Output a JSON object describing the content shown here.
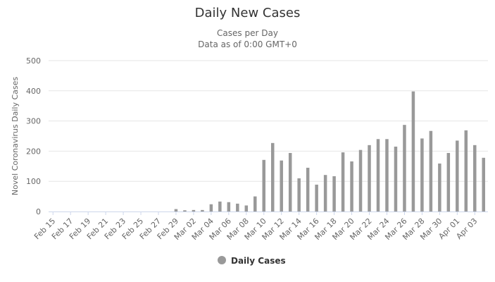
{
  "chart_data": {
    "type": "bar",
    "title": "Daily New Cases",
    "subtitle_lines": [
      "Cases per Day",
      "Data as of 0:00 GMT+0"
    ],
    "ylabel": "Novel Coronavirus Daily Cases",
    "xlabel": "",
    "ylim": [
      0,
      500
    ],
    "yticks": [
      0,
      100,
      200,
      300,
      400,
      500
    ],
    "grid": true,
    "legend_position": "bottom-center",
    "categories": [
      "Feb 15",
      "Feb 16",
      "Feb 17",
      "Feb 18",
      "Feb 19",
      "Feb 20",
      "Feb 21",
      "Feb 22",
      "Feb 23",
      "Feb 24",
      "Feb 25",
      "Feb 26",
      "Feb 27",
      "Feb 28",
      "Feb 29",
      "Mar 01",
      "Mar 02",
      "Mar 03",
      "Mar 04",
      "Mar 05",
      "Mar 06",
      "Mar 07",
      "Mar 08",
      "Mar 09",
      "Mar 10",
      "Mar 11",
      "Mar 12",
      "Mar 13",
      "Mar 14",
      "Mar 15",
      "Mar 16",
      "Mar 17",
      "Mar 18",
      "Mar 19",
      "Mar 20",
      "Mar 21",
      "Mar 22",
      "Mar 23",
      "Mar 24",
      "Mar 25",
      "Mar 26",
      "Mar 27",
      "Mar 28",
      "Mar 29",
      "Mar 30",
      "Mar 31",
      "Apr 01",
      "Apr 02",
      "Apr 03",
      "Apr 04"
    ],
    "tick_labels": [
      "Feb 15",
      "Feb 17",
      "Feb 19",
      "Feb 21",
      "Feb 23",
      "Feb 25",
      "Feb 27",
      "Feb 29",
      "Mar 02",
      "Mar 04",
      "Mar 06",
      "Mar 08",
      "Mar 10",
      "Mar 12",
      "Mar 14",
      "Mar 16",
      "Mar 18",
      "Mar 20",
      "Mar 22",
      "Mar 24",
      "Mar 26",
      "Mar 28",
      "Mar 30",
      "Apr 01",
      "Apr 03"
    ],
    "series": [
      {
        "name": "Daily Cases",
        "color": "#999999",
        "values": [
          0,
          0,
          0,
          0,
          0,
          0,
          0,
          0,
          0,
          0,
          0,
          0,
          0,
          0,
          8,
          4,
          5,
          5,
          24,
          33,
          31,
          26,
          20,
          50,
          171,
          227,
          169,
          194,
          110,
          145,
          89,
          121,
          117,
          196,
          166,
          204,
          220,
          240,
          240,
          215,
          287,
          398,
          242,
          267,
          159,
          194,
          235,
          269,
          220,
          178
        ]
      }
    ]
  }
}
